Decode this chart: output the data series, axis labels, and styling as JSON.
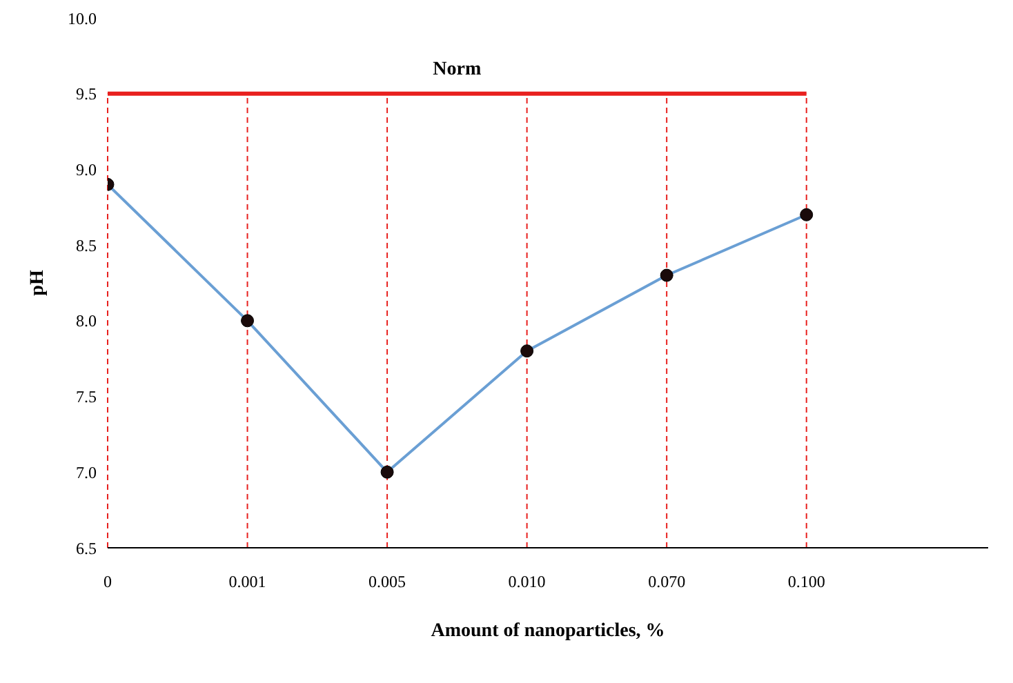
{
  "chart_data": {
    "type": "line",
    "xlabel": "Amount of nanoparticles, %",
    "ylabel": "pH",
    "categories": [
      "0",
      "0.001",
      "0.005",
      "0.010",
      "0.070",
      "0.100"
    ],
    "series": [
      {
        "color": "#6a9fd4",
        "values": [
          8.9,
          8.0,
          7.0,
          7.8,
          8.3,
          8.7
        ]
      }
    ],
    "ylim": [
      6.5,
      10.0
    ],
    "yticks": [
      6.5,
      {
        "value": 7,
        "label": "7.0"
      },
      7.5,
      {
        "value": 8,
        "label": "8.0"
      },
      8.5,
      {
        "value": 9,
        "label": "9.0"
      },
      9.5,
      {
        "value": 10,
        "label": "10.0"
      }
    ],
    "ref_lines": [
      {
        "axis": "y",
        "value": 9.5,
        "label": "Norm",
        "color": "#e8201e"
      }
    ],
    "grid": "x",
    "marker": "circle",
    "line_style": "solid"
  }
}
